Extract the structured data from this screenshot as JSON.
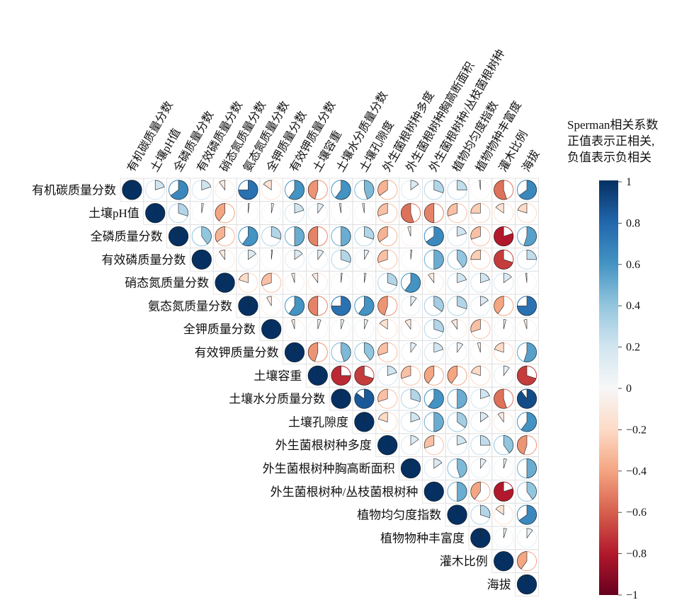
{
  "chart_data": {
    "type": "heatmap",
    "style": "upper-triangle circle (pie) correlation plot",
    "variables": [
      "有机碳质量分数",
      "土壤pH值",
      "全磷质量分数",
      "有效磷质量分数",
      "硝态氮质量分数",
      "氨态氮质量分数",
      "全钾质量分数",
      "有效钾质量分数",
      "土壤容重",
      "土壤水分质量分数",
      "土壤孔隙度",
      "外生菌根树种多度",
      "外生菌根树种胸高断面积",
      "外生菌根树种/丛枝菌根树种",
      "植物均匀度指数",
      "植物物种丰富度",
      "灌木比例",
      "海拔"
    ],
    "legend_title": [
      "Sperman相关系数",
      "正值表示正相关,",
      "负值表示负相关"
    ],
    "colorbar": {
      "range": [
        -1,
        1
      ],
      "ticks": [
        "1",
        "0.8",
        "0.6",
        "0.4",
        "0.2",
        "0",
        "−0.2",
        "−0.4",
        "−0.6",
        "−0.8",
        "−1"
      ]
    },
    "matrix": [
      [
        1,
        0.2,
        0.65,
        0.2,
        -0.1,
        0.75,
        -0.15,
        0.6,
        -0.45,
        0.6,
        0.45,
        -0.35,
        0.15,
        0.3,
        0.25,
        -0.02,
        -0.55,
        0.65
      ],
      [
        0.2,
        1,
        0.3,
        0.03,
        -0.4,
        0.02,
        0.04,
        0.2,
        0.1,
        -0.03,
        -0.03,
        -0.3,
        -0.55,
        -0.5,
        -0.3,
        -0.25,
        -0.15,
        -0.2
      ],
      [
        0.65,
        0.3,
        1,
        0.4,
        -0.35,
        0.6,
        0.3,
        0.5,
        -0.5,
        0.5,
        0.3,
        -0.35,
        -0.05,
        0.65,
        0.2,
        -0.3,
        -0.8,
        0.55
      ],
      [
        0.2,
        0.03,
        0.4,
        1,
        -0.1,
        0.15,
        0.02,
        0.15,
        0.1,
        0.3,
        0.08,
        -0.3,
        0.02,
        0.5,
        0.4,
        -0.25,
        -0.7,
        0.25
      ],
      [
        -0.1,
        -0.4,
        -0.35,
        -0.1,
        1,
        -0.2,
        -0.3,
        -0.05,
        -0.1,
        0.02,
        0.03,
        0.3,
        0.6,
        -0.1,
        0.2,
        0.2,
        0.15,
        -0.02
      ],
      [
        0.75,
        0.02,
        0.6,
        0.15,
        -0.2,
        1,
        -0.08,
        0.6,
        -0.5,
        0.75,
        0.6,
        -0.45,
        0.1,
        0.35,
        0.3,
        0.15,
        -0.4,
        0.75
      ],
      [
        -0.15,
        0.04,
        0.3,
        0.02,
        -0.3,
        -0.08,
        1,
        -0.05,
        0.05,
        0.05,
        0.06,
        -0.15,
        -0.1,
        0.3,
        -0.1,
        -0.3,
        0.04,
        -0.05
      ],
      [
        0.6,
        0.2,
        0.5,
        0.15,
        -0.05,
        0.6,
        -0.05,
        1,
        -0.45,
        0.45,
        0.4,
        -0.3,
        0.1,
        0.2,
        0.1,
        -0.05,
        -0.2,
        0.55
      ],
      [
        -0.45,
        0.1,
        -0.5,
        0.1,
        -0.1,
        -0.5,
        0.05,
        -0.45,
        1,
        -0.75,
        -0.7,
        0.2,
        -0.3,
        -0.4,
        -0.4,
        -0.2,
        0.1,
        -0.7
      ],
      [
        0.6,
        -0.03,
        0.5,
        0.3,
        0.02,
        0.75,
        0.05,
        0.45,
        -0.75,
        1,
        0.85,
        -0.3,
        0.3,
        0.6,
        0.5,
        0.2,
        -0.55,
        0.9
      ],
      [
        0.45,
        -0.03,
        0.3,
        0.08,
        0.03,
        0.6,
        0.06,
        0.4,
        -0.7,
        0.85,
        1,
        -0.2,
        0.2,
        0.5,
        0.35,
        0.15,
        -0.1,
        0.6
      ],
      [
        -0.35,
        -0.3,
        -0.35,
        -0.3,
        0.3,
        -0.45,
        -0.15,
        -0.3,
        0.2,
        -0.3,
        -0.2,
        1,
        0.15,
        -0.3,
        0.2,
        0.25,
        0.4,
        -0.45
      ],
      [
        0.15,
        -0.55,
        -0.05,
        0.02,
        0.6,
        0.1,
        -0.1,
        0.1,
        -0.3,
        0.3,
        0.2,
        0.15,
        1,
        0.15,
        0.45,
        0.1,
        0.05,
        0.5
      ],
      [
        0.3,
        -0.5,
        0.65,
        0.5,
        -0.1,
        0.35,
        0.3,
        0.2,
        -0.4,
        0.6,
        0.5,
        -0.3,
        0.15,
        1,
        0.5,
        -0.4,
        -0.8,
        0.4
      ],
      [
        0.25,
        -0.3,
        0.2,
        0.4,
        0.2,
        0.3,
        -0.1,
        0.1,
        -0.4,
        0.5,
        0.35,
        0.2,
        0.45,
        0.5,
        1,
        0.3,
        -0.15,
        0.65
      ],
      [
        -0.02,
        -0.25,
        -0.3,
        -0.25,
        0.2,
        0.15,
        -0.3,
        -0.05,
        -0.2,
        0.2,
        0.15,
        0.25,
        0.1,
        -0.4,
        0.3,
        1,
        0.05,
        0.1
      ],
      [
        -0.55,
        -0.15,
        -0.8,
        -0.7,
        0.15,
        -0.4,
        0.04,
        -0.2,
        0.1,
        -0.55,
        -0.1,
        0.4,
        0.05,
        -0.8,
        -0.15,
        0.05,
        1,
        -0.4
      ],
      [
        0.65,
        -0.2,
        0.55,
        0.25,
        -0.02,
        0.75,
        -0.05,
        0.55,
        -0.7,
        0.9,
        0.6,
        -0.45,
        0.5,
        0.4,
        0.65,
        0.1,
        -0.4,
        1
      ]
    ]
  }
}
